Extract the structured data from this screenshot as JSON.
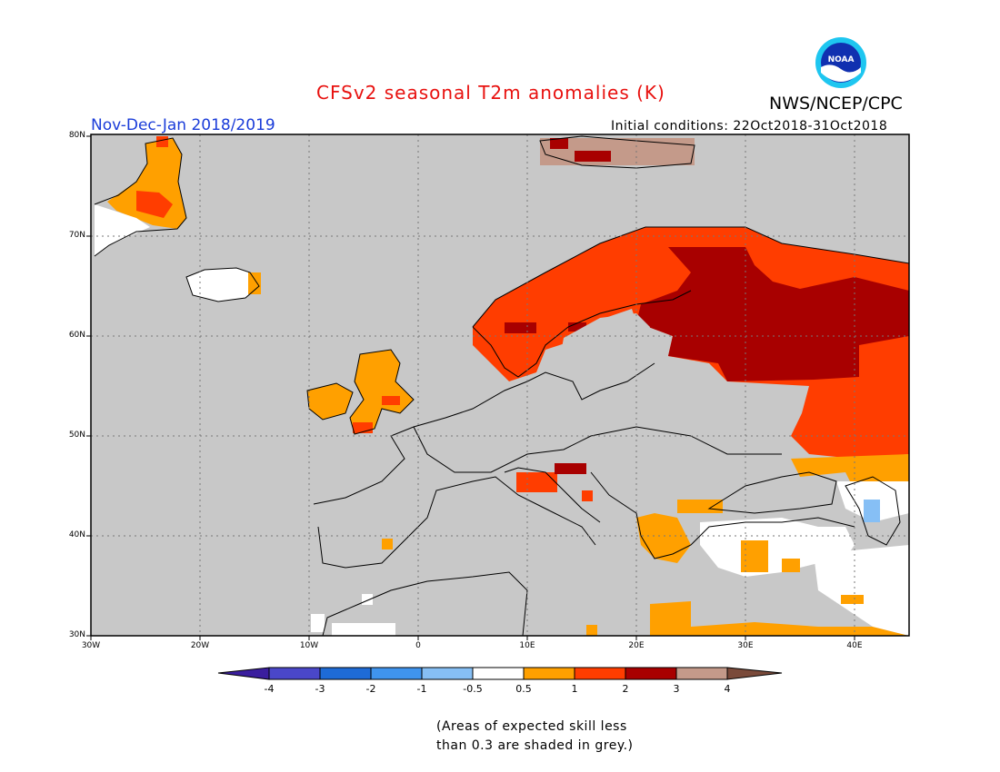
{
  "header": {
    "title": "CFSv2 seasonal T2m anomalies (K)",
    "period": "Nov-Dec-Jan 2018/2019",
    "initial_conditions": "Initial conditions: 22Oct2018-31Oct2018",
    "agency": "NWS/NCEP/CPC",
    "logo_text": "NOAA"
  },
  "map": {
    "lat_labels": [
      "80N",
      "70N",
      "60N",
      "50N",
      "40N",
      "30N"
    ],
    "lon_labels": [
      "30W",
      "20W",
      "10W",
      "0",
      "10E",
      "20E",
      "30E",
      "40E"
    ],
    "ocean_color": "#c8c8c8",
    "coastline_color": "#000000"
  },
  "colorbar": {
    "labels": [
      "-4",
      "-3",
      "-2",
      "-1",
      "-0.5",
      "0.5",
      "1",
      "2",
      "3",
      "4"
    ],
    "colors": [
      "#3a1e9e",
      "#4a47c9",
      "#1e6bd6",
      "#3f94ee",
      "#86bff5",
      "#ffffff",
      "#ffa000",
      "#ff3d00",
      "#a80000",
      "#c49a8a",
      "#7a4a3a"
    ]
  },
  "footnote": {
    "line1": "(Areas of expected skill less",
    "line2": "than 0.3 are shaded in grey.)"
  }
}
